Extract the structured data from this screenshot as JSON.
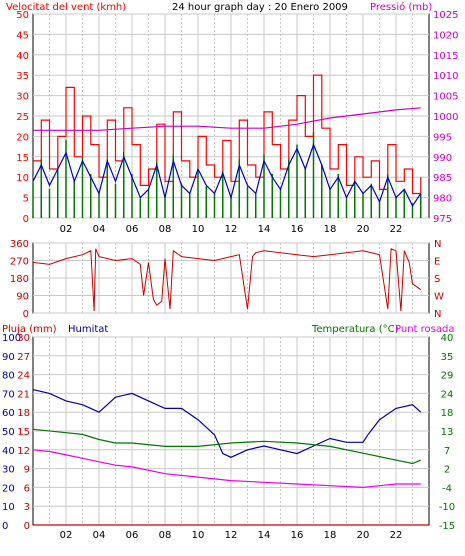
{
  "header": {
    "left_title": "Velocitat del vent (kmh)",
    "center_title": "24 hour graph day : 20 Enero 2009",
    "right_title": "Pressió (mb)"
  },
  "colors": {
    "wind": "#ff0000",
    "wind_avg": "#0000cc",
    "wind_gust_bar": "#007700",
    "pressure": "#cc00cc",
    "direction": "#cc0000",
    "humidity": "#0000aa",
    "temperature": "#007700",
    "dewpoint": "#ee00ee",
    "rain": "#cc0000",
    "grid": "#c8c8c8"
  },
  "chart_data": [
    {
      "type": "line",
      "id": "wind",
      "title": "24 hour graph day : 20 Enero 2009",
      "left_axis_label": "Velocitat del vent (kmh)",
      "right_axis_label": "Pressió (mb)",
      "x_tick_labels": [
        "02",
        "04",
        "06",
        "08",
        "10",
        "12",
        "14",
        "16",
        "18",
        "20",
        "22"
      ],
      "x_range_hours": [
        0,
        24
      ],
      "left_ylim": [
        0,
        50
      ],
      "left_ticks": [
        "0",
        "5",
        "10",
        "15",
        "20",
        "25",
        "30",
        "35",
        "40",
        "45",
        "50"
      ],
      "right_ylim": [
        975,
        1025
      ],
      "right_ticks": [
        "975",
        "980",
        "985",
        "990",
        "995",
        "1000",
        "1005",
        "1010",
        "1015",
        "1020",
        "1025"
      ],
      "grid": true,
      "series": [
        {
          "key": "gust",
          "color_key": "wind",
          "x": [
            0,
            0.5,
            1,
            1.5,
            2,
            2.5,
            3,
            3.5,
            4,
            4.5,
            5,
            5.5,
            6,
            6.5,
            7,
            7.5,
            8,
            8.5,
            9,
            9.5,
            10,
            10.5,
            11,
            11.5,
            12,
            12.5,
            13,
            13.5,
            14,
            14.5,
            15,
            15.5,
            16,
            16.5,
            17,
            17.5,
            18,
            18.5,
            19,
            19.5,
            20,
            20.5,
            21,
            21.5,
            22,
            22.5,
            23,
            23.5
          ],
          "values": [
            14,
            24,
            12,
            20,
            32,
            15,
            25,
            18,
            10,
            24,
            14,
            27,
            18,
            8,
            12,
            23,
            9,
            26,
            14,
            10,
            20,
            13,
            10,
            19,
            9,
            24,
            13,
            10,
            26,
            18,
            12,
            24,
            30,
            20,
            35,
            22,
            12,
            18,
            8,
            15,
            10,
            14,
            7,
            18,
            9,
            12,
            6,
            10
          ]
        },
        {
          "key": "average",
          "color_key": "wind_avg",
          "x": [
            0,
            0.5,
            1,
            1.5,
            2,
            2.5,
            3,
            3.5,
            4,
            4.5,
            5,
            5.5,
            6,
            6.5,
            7,
            7.5,
            8,
            8.5,
            9,
            9.5,
            10,
            10.5,
            11,
            11.5,
            12,
            12.5,
            13,
            13.5,
            14,
            14.5,
            15,
            15.5,
            16,
            16.5,
            17,
            17.5,
            18,
            18.5,
            19,
            19.5,
            20,
            20.5,
            21,
            21.5,
            22,
            22.5,
            23,
            23.5
          ],
          "values": [
            9,
            13,
            8,
            12,
            16,
            9,
            14,
            10,
            6,
            14,
            9,
            15,
            10,
            5,
            7,
            13,
            5,
            14,
            8,
            6,
            12,
            8,
            6,
            11,
            5,
            13,
            8,
            6,
            14,
            10,
            7,
            13,
            17,
            12,
            18,
            13,
            7,
            10,
            5,
            9,
            6,
            8,
            4,
            10,
            5,
            7,
            3,
            6
          ]
        },
        {
          "key": "pressure",
          "color_key": "pressure",
          "axis": "right",
          "x": [
            0,
            2,
            4,
            6,
            8,
            10,
            12,
            14,
            16,
            18,
            20,
            22,
            23.5
          ],
          "values": [
            996.5,
            996.5,
            996.5,
            997,
            997.5,
            997.5,
            997,
            997,
            998,
            999.5,
            1000.5,
            1001.5,
            1002
          ]
        }
      ]
    },
    {
      "type": "line",
      "id": "direction",
      "x_range_hours": [
        0,
        24
      ],
      "ylim": [
        0,
        360
      ],
      "left_ticks": [
        "0",
        "90",
        "180",
        "270",
        "360"
      ],
      "right_ticks": [
        "N",
        "E",
        "S",
        "W",
        "N"
      ],
      "grid": true,
      "series": [
        {
          "key": "direction",
          "color_key": "direction",
          "x": [
            0,
            1,
            2,
            3,
            3.5,
            3.7,
            3.8,
            4,
            5,
            6,
            6.5,
            6.7,
            7,
            7.3,
            7.5,
            7.8,
            8,
            8.3,
            8.5,
            9,
            10,
            11,
            12,
            12.5,
            13,
            13.3,
            13.5,
            14,
            15,
            16,
            17,
            18,
            19,
            20,
            21,
            21.5,
            21.7,
            22,
            22.3,
            22.5,
            22.8,
            23,
            23.5
          ],
          "values": [
            260,
            250,
            280,
            300,
            320,
            10,
            330,
            290,
            270,
            280,
            250,
            90,
            260,
            70,
            40,
            60,
            280,
            20,
            320,
            290,
            280,
            270,
            290,
            300,
            20,
            290,
            310,
            320,
            310,
            300,
            290,
            300,
            310,
            320,
            300,
            20,
            330,
            320,
            10,
            320,
            260,
            150,
            120
          ]
        }
      ]
    },
    {
      "type": "line",
      "id": "humidity-temp",
      "left_axis_label": "Pluja (mm)",
      "humidity_label": "Humitat",
      "right_axis_label": "Temperatura (°C)",
      "dewpoint_label": "Punt rosada",
      "x_range_hours": [
        0,
        24
      ],
      "humidity_ylim": [
        0,
        100
      ],
      "humidity_ticks": [
        "0",
        "10",
        "20",
        "30",
        "40",
        "50",
        "60",
        "70",
        "80",
        "90",
        "100"
      ],
      "rain_ylim": [
        0,
        30
      ],
      "rain_ticks": [
        "0",
        "3",
        "6",
        "9",
        "12",
        "15",
        "18",
        "21",
        "24",
        "27",
        "30"
      ],
      "temp_ylim": [
        -15,
        40
      ],
      "temp_ticks": [
        "-15",
        "-10",
        "-4",
        "2",
        "7",
        "13",
        "18",
        "24",
        "29",
        "35",
        "40"
      ],
      "grid": true,
      "series": [
        {
          "key": "humidity",
          "color_key": "humidity",
          "x": [
            0,
            1,
            2,
            3,
            3.5,
            4,
            4.5,
            5,
            6,
            7,
            8,
            9,
            10,
            11,
            11.5,
            12,
            13,
            14,
            15,
            16,
            17,
            18,
            19,
            20,
            20.3,
            21,
            22,
            23,
            23.5
          ],
          "values": [
            72,
            70,
            66,
            64,
            62,
            60,
            64,
            68,
            70,
            66,
            62,
            62,
            56,
            48,
            38,
            36,
            40,
            42,
            40,
            38,
            42,
            46,
            44,
            44,
            48,
            56,
            62,
            64,
            60
          ]
        },
        {
          "key": "temperature",
          "color_key": "temperature",
          "x": [
            0,
            2,
            3,
            4,
            5,
            6,
            8,
            10,
            12,
            14,
            16,
            18,
            20,
            22,
            23,
            23.5
          ],
          "values": [
            13,
            12,
            11.5,
            10,
            9,
            9,
            8,
            8,
            9,
            9.5,
            9,
            8,
            6,
            4,
            3,
            4
          ]
        },
        {
          "key": "dewpoint",
          "color_key": "dewpoint",
          "x": [
            0,
            1,
            2,
            3,
            4,
            5,
            6,
            8,
            10,
            12,
            14,
            16,
            18,
            20,
            21,
            22,
            23,
            23.5
          ],
          "values": [
            7,
            6.5,
            5.5,
            4.5,
            3.5,
            2.5,
            2,
            0,
            -1,
            -2,
            -2.5,
            -3,
            -3.5,
            -4,
            -3.5,
            -3,
            -3,
            -3
          ]
        },
        {
          "key": "rain",
          "color_key": "rain",
          "axis": "rain",
          "x": [
            0,
            24
          ],
          "values": [
            0,
            0
          ]
        }
      ]
    }
  ]
}
